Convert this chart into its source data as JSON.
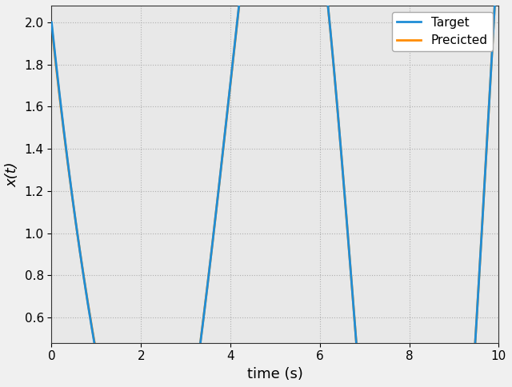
{
  "title": "",
  "xlabel": "time (s)",
  "ylabel": "x(t)",
  "xlim": [
    0,
    10
  ],
  "ylim": [
    0.48,
    2.08
  ],
  "target_color": "#1f8dd6",
  "predicted_color": "#ff8c00",
  "target_label": "Target",
  "predicted_label": "Precicted",
  "target_linewidth": 2.0,
  "predicted_linewidth": 2.0,
  "grid_color": "#b0b0b0",
  "bg_color": "#e8e8e8",
  "legend_fontsize": 11,
  "axis_label_fontsize": 13,
  "xticks": [
    0,
    2,
    4,
    6,
    8,
    10
  ],
  "yticks": [
    0.6,
    0.8,
    1.0,
    1.2,
    1.4,
    1.6,
    1.8,
    2.0
  ]
}
